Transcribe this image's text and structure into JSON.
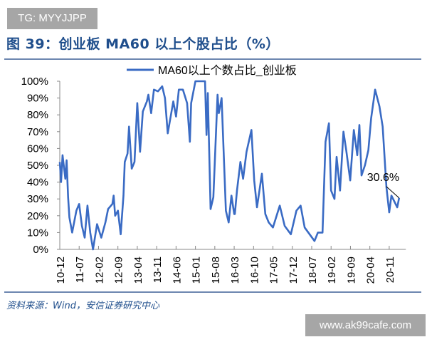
{
  "watermark_top": "TG: MYYJJPP",
  "watermark_bottom": "www.ak99cafe.com",
  "figure_title": "图 39：创业板 MA60 以上个股占比（%）",
  "source": "资料来源：Wind，安信证券研究中心",
  "colors": {
    "series": "#3a6bc4",
    "title": "#1f4e8c",
    "rule": "#6d87b0",
    "watermark_bg": "#a6a6a6"
  },
  "chart_data": {
    "type": "line",
    "title": "",
    "xlabel": "",
    "ylabel": "",
    "legend_position": "top-center",
    "grid": false,
    "xlim": [
      "2010-12",
      "2021-05"
    ],
    "ylim": [
      0,
      100
    ],
    "y_ticks": [
      "0%",
      "10%",
      "20%",
      "30%",
      "40%",
      "50%",
      "60%",
      "70%",
      "80%",
      "90%",
      "100%"
    ],
    "x_ticks": [
      "10-12",
      "11-07",
      "12-02",
      "12-09",
      "13-04",
      "13-11",
      "14-06",
      "15-01",
      "15-08",
      "16-03",
      "16-10",
      "17-05",
      "17-12",
      "18-07",
      "19-02",
      "19-09",
      "20-04",
      "20-11"
    ],
    "annotation": {
      "text": "30.6%",
      "date": "2021-02-18",
      "value": 30.6
    },
    "series": [
      {
        "name": "MA60以上个数占比_创业板",
        "points": [
          [
            "2010-12-01",
            52
          ],
          [
            "2010-12-15",
            40
          ],
          [
            "2011-01-01",
            56
          ],
          [
            "2011-02-01",
            42
          ],
          [
            "2011-02-15",
            53
          ],
          [
            "2011-03-01",
            31
          ],
          [
            "2011-03-15",
            19
          ],
          [
            "2011-04-15",
            10
          ],
          [
            "2011-06-01",
            23
          ],
          [
            "2011-07-01",
            27
          ],
          [
            "2011-08-01",
            14
          ],
          [
            "2011-09-01",
            7
          ],
          [
            "2011-10-01",
            26
          ],
          [
            "2011-11-01",
            10
          ],
          [
            "2011-12-01",
            0
          ],
          [
            "2012-01-15",
            15
          ],
          [
            "2012-03-01",
            7
          ],
          [
            "2012-04-15",
            16
          ],
          [
            "2012-05-15",
            24
          ],
          [
            "2012-07-01",
            27
          ],
          [
            "2012-07-15",
            32
          ],
          [
            "2012-08-01",
            20
          ],
          [
            "2012-09-01",
            23
          ],
          [
            "2012-10-01",
            9
          ],
          [
            "2012-11-01",
            32
          ],
          [
            "2012-11-15",
            52
          ],
          [
            "2012-12-15",
            57
          ],
          [
            "2013-01-01",
            73
          ],
          [
            "2013-02-01",
            48
          ],
          [
            "2013-03-01",
            52
          ],
          [
            "2013-04-01",
            87
          ],
          [
            "2013-05-01",
            58
          ],
          [
            "2013-06-01",
            82
          ],
          [
            "2013-07-15",
            88
          ],
          [
            "2013-08-01",
            92
          ],
          [
            "2013-09-01",
            81
          ],
          [
            "2013-10-01",
            95
          ],
          [
            "2013-11-15",
            94
          ],
          [
            "2014-01-01",
            97
          ],
          [
            "2014-02-01",
            90
          ],
          [
            "2014-03-01",
            69
          ],
          [
            "2014-05-01",
            88
          ],
          [
            "2014-06-01",
            79
          ],
          [
            "2014-07-01",
            95
          ],
          [
            "2014-08-15",
            95
          ],
          [
            "2014-10-01",
            87
          ],
          [
            "2014-11-01",
            64
          ],
          [
            "2014-11-15",
            87
          ],
          [
            "2015-01-01",
            100
          ],
          [
            "2015-04-15",
            100
          ],
          [
            "2015-05-01",
            68
          ],
          [
            "2015-05-15",
            93
          ],
          [
            "2015-06-15",
            24
          ],
          [
            "2015-07-15",
            31
          ],
          [
            "2015-09-01",
            92
          ],
          [
            "2015-09-15",
            81
          ],
          [
            "2015-10-15",
            90
          ],
          [
            "2015-12-01",
            23
          ],
          [
            "2016-01-01",
            16
          ],
          [
            "2016-02-01",
            32
          ],
          [
            "2016-03-01",
            21
          ],
          [
            "2016-03-08",
            21
          ],
          [
            "2016-04-01",
            35
          ],
          [
            "2016-05-08",
            52
          ],
          [
            "2016-06-08",
            42
          ],
          [
            "2016-07-15",
            58
          ],
          [
            "2016-09-08",
            71
          ],
          [
            "2016-10-08",
            41
          ],
          [
            "2016-11-08",
            25
          ],
          [
            "2017-01-01",
            45
          ],
          [
            "2017-02-08",
            21
          ],
          [
            "2017-03-15",
            16
          ],
          [
            "2017-05-01",
            13
          ],
          [
            "2017-07-15",
            26
          ],
          [
            "2017-09-08",
            14
          ],
          [
            "2017-11-15",
            9
          ],
          [
            "2018-01-15",
            23
          ],
          [
            "2018-03-01",
            26
          ],
          [
            "2018-04-15",
            13
          ],
          [
            "2018-08-01",
            5
          ],
          [
            "2018-09-08",
            10
          ],
          [
            "2018-10-28",
            10
          ],
          [
            "2018-12-01",
            64
          ],
          [
            "2019-01-08",
            75
          ],
          [
            "2019-02-01",
            35
          ],
          [
            "2019-03-08",
            30
          ],
          [
            "2019-04-01",
            55
          ],
          [
            "2019-05-08",
            35
          ],
          [
            "2019-06-15",
            70
          ],
          [
            "2019-07-15",
            59
          ],
          [
            "2019-08-28",
            41
          ],
          [
            "2019-10-08",
            71
          ],
          [
            "2019-11-15",
            56
          ],
          [
            "2019-12-08",
            74
          ],
          [
            "2020-01-01",
            44
          ],
          [
            "2020-02-08",
            50
          ],
          [
            "2020-03-15",
            59
          ],
          [
            "2020-04-15",
            78
          ],
          [
            "2020-05-28",
            95
          ],
          [
            "2020-07-15",
            85
          ],
          [
            "2020-08-20",
            73
          ],
          [
            "2020-10-01",
            37
          ],
          [
            "2020-11-01",
            22
          ],
          [
            "2020-11-25",
            32
          ],
          [
            "2021-01-28",
            25
          ],
          [
            "2021-02-18",
            30.6
          ]
        ]
      }
    ]
  }
}
